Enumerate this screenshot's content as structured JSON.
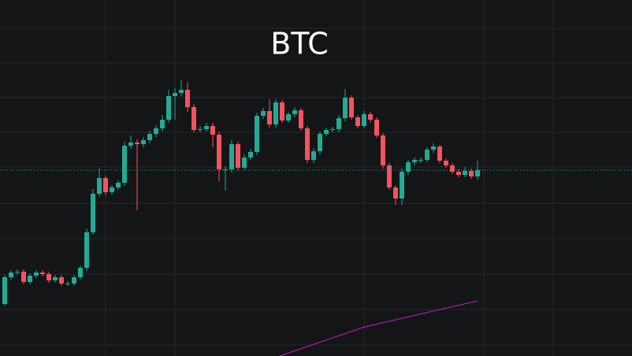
{
  "chart_data": {
    "type": "candlestick",
    "title": "BTC",
    "open": [
      66,
      100,
      106,
      107,
      94,
      102,
      106,
      104,
      96,
      100,
      92,
      92,
      100,
      112,
      157,
      206,
      226,
      208,
      214,
      220,
      267,
      271,
      269,
      274,
      282,
      289,
      300,
      330,
      334,
      338,
      316,
      287,
      288,
      292,
      281,
      237,
      237,
      269,
      239,
      252,
      259,
      305,
      311,
      294,
      322,
      299,
      307,
      312,
      289,
      249,
      260,
      282,
      287,
      288,
      302,
      328,
      303,
      292,
      307,
      300,
      280,
      242,
      214,
      200,
      234,
      246,
      249,
      249,
      262,
      266,
      248,
      242,
      234,
      230,
      235,
      228
    ],
    "high": [
      103,
      109,
      110,
      110,
      105,
      109,
      109,
      107,
      103,
      103,
      95,
      103,
      115,
      162,
      212,
      238,
      229,
      217,
      223,
      272,
      280,
      275,
      278,
      286,
      293,
      306,
      338,
      340,
      350,
      348,
      320,
      292,
      296,
      296,
      285,
      241,
      274,
      272,
      256,
      263,
      309,
      315,
      326,
      326,
      325,
      310,
      316,
      315,
      292,
      264,
      285,
      290,
      291,
      306,
      339,
      331,
      306,
      311,
      310,
      303,
      283,
      245,
      217,
      238,
      249,
      252,
      252,
      265,
      270,
      268,
      251,
      245,
      237,
      240,
      238,
      248
    ],
    "low": [
      64,
      97,
      103,
      91,
      91,
      99,
      101,
      93,
      93,
      89,
      89,
      89,
      97,
      108,
      154,
      202,
      204,
      205,
      211,
      216,
      263,
      185,
      265,
      270,
      278,
      285,
      296,
      300,
      330,
      310,
      284,
      284,
      285,
      265,
      222,
      210,
      233,
      236,
      236,
      249,
      255,
      301,
      290,
      290,
      296,
      296,
      303,
      286,
      245,
      245,
      256,
      279,
      284,
      284,
      298,
      300,
      289,
      289,
      296,
      277,
      238,
      211,
      192,
      192,
      230,
      242,
      245,
      246,
      258,
      245,
      239,
      231,
      227,
      227,
      225,
      224
    ],
    "close": [
      100,
      106,
      107,
      94,
      102,
      106,
      104,
      96,
      100,
      92,
      92,
      100,
      112,
      157,
      206,
      226,
      208,
      214,
      220,
      267,
      271,
      269,
      274,
      282,
      289,
      300,
      330,
      334,
      338,
      316,
      287,
      288,
      292,
      281,
      237,
      237,
      269,
      239,
      252,
      259,
      305,
      311,
      294,
      322,
      299,
      307,
      312,
      289,
      249,
      260,
      282,
      287,
      288,
      302,
      328,
      303,
      292,
      307,
      300,
      280,
      242,
      214,
      200,
      234,
      246,
      249,
      249,
      262,
      266,
      248,
      242,
      234,
      230,
      235,
      228,
      236
    ],
    "up_color": "#22ab94",
    "down_color": "#f7525f",
    "indicator": {
      "color": "#c71fc7",
      "x": [
        43.6,
        57.1,
        75
      ],
      "values": [
        0,
        37,
        70
      ]
    },
    "xlim": [
      -0.75,
      99.5
    ],
    "xticks": [
      16,
      27,
      57,
      76,
      87
    ],
    "ylim": [
      0,
      452
    ],
    "yticks": [
      14,
      59,
      104,
      149,
      194,
      240,
      284,
      328,
      372,
      416
    ],
    "grid": true,
    "last_price_line": true
  }
}
